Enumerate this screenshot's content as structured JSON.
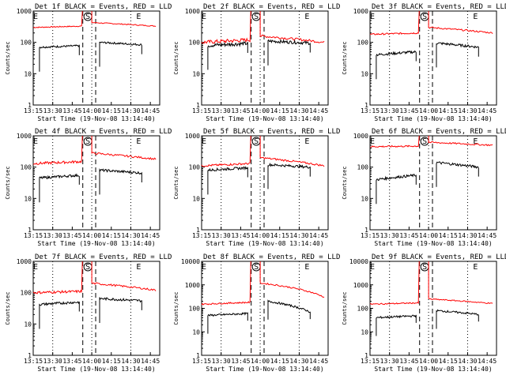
{
  "chart_data": [
    {
      "type": "line",
      "title": "Det 1f BLACK = Events, RED = LLD",
      "xlabel": "Start Time (19-Nov-08 13:14:40)",
      "ylabel": "Counts/sec",
      "yscale": "log",
      "ylim": [
        1,
        1000
      ],
      "yticks": [
        "1",
        "10",
        "100",
        "1000"
      ],
      "xticks": [
        "13:15",
        "13:30",
        "13:45",
        "14:00",
        "14:15",
        "14:30",
        "14:45"
      ],
      "markers": [
        "E",
        "S",
        "E"
      ],
      "series": [
        {
          "color": "#ff0000",
          "segments": [
            {
              "t0": 13.25,
              "t1": 13.87,
              "y0": 300,
              "y1": 330,
              "noise": 0.03
            },
            {
              "t0": 14.0,
              "t1": 14.82,
              "y0": 430,
              "y1": 330,
              "noise": 0.03
            }
          ]
        },
        {
          "color": "#000000",
          "segments": [
            {
              "t0": 13.33,
              "t1": 13.84,
              "y0": 70,
              "y1": 78,
              "noise": 0.06
            },
            {
              "t0": 14.1,
              "t1": 14.64,
              "y0": 100,
              "y1": 84,
              "noise": 0.06
            }
          ]
        }
      ]
    },
    {
      "type": "line",
      "title": "Det 2f BLACK = Events, RED = LLD",
      "xlabel": "Start Time (19-Nov-08 13:14:40)",
      "ylabel": "Counts/sec",
      "yscale": "log",
      "ylim": [
        1,
        1000
      ],
      "yticks": [
        "1",
        "10",
        "100",
        "1000"
      ],
      "xticks": [
        "13:15",
        "13:30",
        "13:45",
        "14:00",
        "14:15",
        "14:30",
        "14:45"
      ],
      "markers": [
        "E",
        "S",
        "E"
      ],
      "series": [
        {
          "color": "#ff0000",
          "segments": [
            {
              "t0": 13.25,
              "t1": 13.87,
              "y0": 100,
              "y1": 120,
              "noise": 0.12
            },
            {
              "t0": 14.0,
              "t1": 14.82,
              "y0": 160,
              "y1": 100,
              "noise": 0.08
            }
          ]
        },
        {
          "color": "#000000",
          "segments": [
            {
              "t0": 13.33,
              "t1": 13.84,
              "y0": 80,
              "y1": 92,
              "noise": 0.12
            },
            {
              "t0": 14.1,
              "t1": 14.64,
              "y0": 110,
              "y1": 95,
              "noise": 0.1
            }
          ]
        }
      ]
    },
    {
      "type": "line",
      "title": "Det 3f BLACK = Events, RED = LLD",
      "xlabel": "Start Time (19-Nov-08 13:14:40)",
      "ylabel": "Counts/sec",
      "yscale": "log",
      "ylim": [
        1,
        1000
      ],
      "yticks": [
        "1",
        "10",
        "100",
        "1000"
      ],
      "xticks": [
        "13:15",
        "13:30",
        "13:45",
        "14:00",
        "14:15",
        "14:30",
        "14:45"
      ],
      "markers": [
        "E",
        "S",
        "E"
      ],
      "series": [
        {
          "color": "#ff0000",
          "segments": [
            {
              "t0": 13.25,
              "t1": 13.87,
              "y0": 180,
              "y1": 200,
              "noise": 0.05
            },
            {
              "t0": 14.0,
              "t1": 14.82,
              "y0": 300,
              "y1": 200,
              "noise": 0.05
            }
          ]
        },
        {
          "color": "#000000",
          "segments": [
            {
              "t0": 13.33,
              "t1": 13.84,
              "y0": 40,
              "y1": 50,
              "noise": 0.08
            },
            {
              "t0": 14.1,
              "t1": 14.64,
              "y0": 95,
              "y1": 70,
              "noise": 0.08
            }
          ]
        }
      ]
    },
    {
      "type": "line",
      "title": "Det 4f BLACK = Events, RED = LLD",
      "xlabel": "Start Time (19-Nov-08 13:14:40)",
      "ylabel": "Counts/sec",
      "yscale": "log",
      "ylim": [
        1,
        1000
      ],
      "yticks": [
        "1",
        "10",
        "100",
        "1000"
      ],
      "xticks": [
        "13:15",
        "13:30",
        "13:45",
        "14:00",
        "14:15",
        "14:30",
        "14:45"
      ],
      "markers": [
        "E",
        "S",
        "E"
      ],
      "series": [
        {
          "color": "#ff0000",
          "segments": [
            {
              "t0": 13.25,
              "t1": 13.87,
              "y0": 130,
              "y1": 150,
              "noise": 0.08
            },
            {
              "t0": 14.0,
              "t1": 14.82,
              "y0": 280,
              "y1": 180,
              "noise": 0.06
            }
          ]
        },
        {
          "color": "#000000",
          "segments": [
            {
              "t0": 13.33,
              "t1": 13.84,
              "y0": 45,
              "y1": 55,
              "noise": 0.08
            },
            {
              "t0": 14.1,
              "t1": 14.64,
              "y0": 80,
              "y1": 65,
              "noise": 0.08
            }
          ]
        }
      ]
    },
    {
      "type": "line",
      "title": "Det 5f BLACK = Events, RED = LLD",
      "xlabel": "Start Time (19-Nov-08 13:14:40)",
      "ylabel": "Counts/sec",
      "yscale": "log",
      "ylim": [
        1,
        1000
      ],
      "yticks": [
        "1",
        "10",
        "100",
        "1000"
      ],
      "xticks": [
        "13:15",
        "13:30",
        "13:45",
        "14:00",
        "14:15",
        "14:30",
        "14:45"
      ],
      "markers": [
        "E",
        "S",
        "E"
      ],
      "series": [
        {
          "color": "#ff0000",
          "segments": [
            {
              "t0": 13.25,
              "t1": 13.87,
              "y0": 110,
              "y1": 130,
              "noise": 0.06
            },
            {
              "t0": 14.0,
              "t1": 14.82,
              "y0": 200,
              "y1": 110,
              "noise": 0.06
            }
          ]
        },
        {
          "color": "#000000",
          "segments": [
            {
              "t0": 13.33,
              "t1": 13.84,
              "y0": 80,
              "y1": 95,
              "noise": 0.08
            },
            {
              "t0": 14.1,
              "t1": 14.64,
              "y0": 120,
              "y1": 100,
              "noise": 0.08
            }
          ]
        }
      ]
    },
    {
      "type": "line",
      "title": "Det 6f BLACK = Events, RED = LLD",
      "xlabel": "Start Time (19-Nov-08 13:14:40)",
      "ylabel": "Counts/sec",
      "yscale": "log",
      "ylim": [
        1,
        1000
      ],
      "yticks": [
        "1",
        "10",
        "100",
        "1000"
      ],
      "xticks": [
        "13:15",
        "13:30",
        "13:45",
        "14:00",
        "14:15",
        "14:30",
        "14:45"
      ],
      "markers": [
        "E",
        "S",
        "E"
      ],
      "series": [
        {
          "color": "#ff0000",
          "segments": [
            {
              "t0": 13.25,
              "t1": 13.87,
              "y0": 450,
              "y1": 470,
              "noise": 0.05
            },
            {
              "t0": 14.0,
              "t1": 14.82,
              "y0": 620,
              "y1": 500,
              "noise": 0.05
            }
          ]
        },
        {
          "color": "#000000",
          "segments": [
            {
              "t0": 13.33,
              "t1": 13.84,
              "y0": 40,
              "y1": 55,
              "noise": 0.08
            },
            {
              "t0": 14.1,
              "t1": 14.64,
              "y0": 140,
              "y1": 100,
              "noise": 0.08
            }
          ]
        }
      ]
    },
    {
      "type": "line",
      "title": "Det 7f BLACK = Events, RED = LLD",
      "xlabel": "Start Time (19-Nov-08 13:14:40)",
      "ylabel": "Counts/sec",
      "yscale": "log",
      "ylim": [
        1,
        1000
      ],
      "yticks": [
        "1",
        "10",
        "100",
        "1000"
      ],
      "xticks": [
        "13:15",
        "13:30",
        "13:45",
        "14:00",
        "14:15",
        "14:30",
        "14:45"
      ],
      "markers": [
        "E",
        "S",
        "E"
      ],
      "series": [
        {
          "color": "#ff0000",
          "segments": [
            {
              "t0": 13.25,
              "t1": 13.87,
              "y0": 100,
              "y1": 110,
              "noise": 0.08
            },
            {
              "t0": 14.0,
              "t1": 14.82,
              "y0": 200,
              "y1": 120,
              "noise": 0.06
            }
          ]
        },
        {
          "color": "#000000",
          "segments": [
            {
              "t0": 13.33,
              "t1": 13.84,
              "y0": 42,
              "y1": 50,
              "noise": 0.08
            },
            {
              "t0": 14.1,
              "t1": 14.64,
              "y0": 65,
              "y1": 55,
              "noise": 0.08
            }
          ]
        }
      ]
    },
    {
      "type": "line",
      "title": "Det 8f BLACK = Events, RED = LLD",
      "xlabel": "Start Time (19-Nov-08 13:14:40)",
      "ylabel": "Counts/sec",
      "yscale": "log",
      "ylim": [
        1,
        10000
      ],
      "yticks": [
        "1",
        "10",
        "100",
        "1000",
        "10000"
      ],
      "xticks": [
        "13:15",
        "13:30",
        "13:45",
        "14:00",
        "14:15",
        "14:30",
        "14:45"
      ],
      "markers": [
        "E",
        "S",
        "E"
      ],
      "series": [
        {
          "color": "#ff0000",
          "segments": [
            {
              "t0": 13.25,
              "t1": 13.87,
              "y0": 150,
              "y1": 180,
              "noise": 0.06
            },
            {
              "t0": 14.0,
              "t1": 14.82,
              "y0": 1200,
              "y1": 300,
              "noise": 0.06
            }
          ]
        },
        {
          "color": "#000000",
          "segments": [
            {
              "t0": 13.33,
              "t1": 13.84,
              "y0": 50,
              "y1": 60,
              "noise": 0.08
            },
            {
              "t0": 14.1,
              "t1": 14.64,
              "y0": 200,
              "y1": 70,
              "noise": 0.08
            }
          ]
        }
      ]
    },
    {
      "type": "line",
      "title": "Det 9f BLACK = Events, RED = LLD",
      "xlabel": "Start Time (19-Nov-08 13:14:40)",
      "ylabel": "Counts/sec",
      "yscale": "log",
      "ylim": [
        1,
        10000
      ],
      "yticks": [
        "1",
        "10",
        "100",
        "1000",
        "10000"
      ],
      "xticks": [
        "13:15",
        "13:30",
        "13:45",
        "14:00",
        "14:15",
        "14:30",
        "14:45"
      ],
      "markers": [
        "E",
        "S",
        "E"
      ],
      "series": [
        {
          "color": "#ff0000",
          "segments": [
            {
              "t0": 13.25,
              "t1": 13.87,
              "y0": 150,
              "y1": 170,
              "noise": 0.05
            },
            {
              "t0": 14.0,
              "t1": 14.82,
              "y0": 250,
              "y1": 160,
              "noise": 0.05
            }
          ]
        },
        {
          "color": "#000000",
          "segments": [
            {
              "t0": 13.33,
              "t1": 13.84,
              "y0": 40,
              "y1": 48,
              "noise": 0.08
            },
            {
              "t0": 14.1,
              "t1": 14.64,
              "y0": 80,
              "y1": 55,
              "noise": 0.08
            }
          ]
        }
      ]
    }
  ]
}
